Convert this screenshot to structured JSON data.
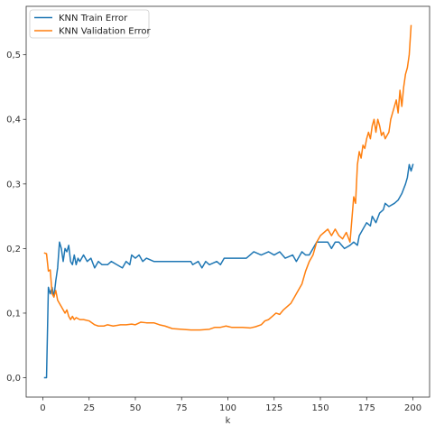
{
  "chart_data": {
    "type": "line",
    "title": "",
    "xlabel": "k",
    "ylabel": "",
    "xlim": [
      -9,
      209
    ],
    "ylim": [
      -0.03,
      0.575
    ],
    "x_ticks": [
      0,
      25,
      50,
      75,
      100,
      125,
      150,
      175,
      200
    ],
    "x_tick_labels": [
      "0",
      "25",
      "50",
      "75",
      "100",
      "125",
      "150",
      "175",
      "200"
    ],
    "y_ticks": [
      0.0,
      0.1,
      0.2,
      0.3,
      0.4,
      0.5
    ],
    "y_tick_labels": [
      "0,0",
      "0,1",
      "0,2",
      "0,3",
      "0,4",
      "0,5"
    ],
    "grid": false,
    "legend_position": "top-left",
    "series": [
      {
        "name": "KNN Train Error",
        "color": "#1f77b4",
        "points": [
          [
            1,
            0.0
          ],
          [
            2,
            0.0
          ],
          [
            3,
            0.14
          ],
          [
            4,
            0.13
          ],
          [
            5,
            0.14
          ],
          [
            6,
            0.125
          ],
          [
            7,
            0.15
          ],
          [
            8,
            0.17
          ],
          [
            9,
            0.21
          ],
          [
            10,
            0.2
          ],
          [
            11,
            0.18
          ],
          [
            12,
            0.2
          ],
          [
            13,
            0.195
          ],
          [
            14,
            0.205
          ],
          [
            15,
            0.18
          ],
          [
            16,
            0.175
          ],
          [
            17,
            0.19
          ],
          [
            18,
            0.175
          ],
          [
            19,
            0.185
          ],
          [
            20,
            0.18
          ],
          [
            22,
            0.19
          ],
          [
            24,
            0.18
          ],
          [
            26,
            0.185
          ],
          [
            28,
            0.17
          ],
          [
            30,
            0.18
          ],
          [
            32,
            0.175
          ],
          [
            35,
            0.175
          ],
          [
            37,
            0.18
          ],
          [
            40,
            0.175
          ],
          [
            43,
            0.17
          ],
          [
            45,
            0.18
          ],
          [
            47,
            0.175
          ],
          [
            48,
            0.19
          ],
          [
            50,
            0.185
          ],
          [
            52,
            0.19
          ],
          [
            54,
            0.18
          ],
          [
            56,
            0.185
          ],
          [
            60,
            0.18
          ],
          [
            70,
            0.18
          ],
          [
            80,
            0.18
          ],
          [
            81,
            0.175
          ],
          [
            84,
            0.18
          ],
          [
            86,
            0.17
          ],
          [
            88,
            0.18
          ],
          [
            90,
            0.175
          ],
          [
            94,
            0.18
          ],
          [
            96,
            0.175
          ],
          [
            98,
            0.185
          ],
          [
            102,
            0.185
          ],
          [
            110,
            0.185
          ],
          [
            112,
            0.19
          ],
          [
            114,
            0.195
          ],
          [
            118,
            0.19
          ],
          [
            122,
            0.195
          ],
          [
            125,
            0.19
          ],
          [
            128,
            0.195
          ],
          [
            131,
            0.185
          ],
          [
            135,
            0.19
          ],
          [
            137,
            0.18
          ],
          [
            140,
            0.195
          ],
          [
            142,
            0.19
          ],
          [
            144,
            0.19
          ],
          [
            146,
            0.2
          ],
          [
            148,
            0.21
          ],
          [
            150,
            0.21
          ],
          [
            154,
            0.21
          ],
          [
            156,
            0.2
          ],
          [
            158,
            0.21
          ],
          [
            160,
            0.21
          ],
          [
            163,
            0.2
          ],
          [
            166,
            0.205
          ],
          [
            168,
            0.21
          ],
          [
            170,
            0.205
          ],
          [
            171,
            0.22
          ],
          [
            173,
            0.23
          ],
          [
            175,
            0.24
          ],
          [
            177,
            0.235
          ],
          [
            178,
            0.25
          ],
          [
            180,
            0.24
          ],
          [
            182,
            0.255
          ],
          [
            184,
            0.26
          ],
          [
            185,
            0.27
          ],
          [
            187,
            0.265
          ],
          [
            190,
            0.27
          ],
          [
            192,
            0.275
          ],
          [
            194,
            0.285
          ],
          [
            196,
            0.3
          ],
          [
            197,
            0.31
          ],
          [
            198,
            0.33
          ],
          [
            199,
            0.32
          ],
          [
            200,
            0.33
          ]
        ]
      },
      {
        "name": "KNN Validation Error",
        "color": "#ff7f0e",
        "points": [
          [
            1,
            0.193
          ],
          [
            2,
            0.192
          ],
          [
            3,
            0.165
          ],
          [
            4,
            0.167
          ],
          [
            5,
            0.13
          ],
          [
            6,
            0.125
          ],
          [
            7,
            0.135
          ],
          [
            8,
            0.12
          ],
          [
            9,
            0.115
          ],
          [
            10,
            0.11
          ],
          [
            11,
            0.105
          ],
          [
            12,
            0.1
          ],
          [
            13,
            0.105
          ],
          [
            14,
            0.095
          ],
          [
            15,
            0.09
          ],
          [
            16,
            0.095
          ],
          [
            17,
            0.09
          ],
          [
            18,
            0.093
          ],
          [
            20,
            0.09
          ],
          [
            22,
            0.09
          ],
          [
            25,
            0.088
          ],
          [
            28,
            0.082
          ],
          [
            30,
            0.08
          ],
          [
            33,
            0.08
          ],
          [
            35,
            0.082
          ],
          [
            38,
            0.08
          ],
          [
            42,
            0.082
          ],
          [
            45,
            0.082
          ],
          [
            48,
            0.083
          ],
          [
            50,
            0.082
          ],
          [
            53,
            0.086
          ],
          [
            56,
            0.085
          ],
          [
            60,
            0.085
          ],
          [
            63,
            0.082
          ],
          [
            66,
            0.08
          ],
          [
            70,
            0.076
          ],
          [
            75,
            0.075
          ],
          [
            80,
            0.074
          ],
          [
            85,
            0.074
          ],
          [
            90,
            0.075
          ],
          [
            93,
            0.078
          ],
          [
            96,
            0.078
          ],
          [
            99,
            0.08
          ],
          [
            102,
            0.078
          ],
          [
            105,
            0.078
          ],
          [
            108,
            0.078
          ],
          [
            112,
            0.077
          ],
          [
            115,
            0.079
          ],
          [
            118,
            0.082
          ],
          [
            120,
            0.088
          ],
          [
            122,
            0.09
          ],
          [
            124,
            0.095
          ],
          [
            126,
            0.1
          ],
          [
            128,
            0.098
          ],
          [
            130,
            0.105
          ],
          [
            132,
            0.11
          ],
          [
            134,
            0.115
          ],
          [
            136,
            0.125
          ],
          [
            138,
            0.135
          ],
          [
            140,
            0.145
          ],
          [
            142,
            0.165
          ],
          [
            144,
            0.18
          ],
          [
            146,
            0.19
          ],
          [
            148,
            0.21
          ],
          [
            150,
            0.22
          ],
          [
            152,
            0.225
          ],
          [
            154,
            0.23
          ],
          [
            156,
            0.22
          ],
          [
            158,
            0.23
          ],
          [
            160,
            0.22
          ],
          [
            162,
            0.215
          ],
          [
            164,
            0.225
          ],
          [
            166,
            0.21
          ],
          [
            168,
            0.28
          ],
          [
            169,
            0.27
          ],
          [
            170,
            0.33
          ],
          [
            171,
            0.35
          ],
          [
            172,
            0.34
          ],
          [
            173,
            0.36
          ],
          [
            174,
            0.355
          ],
          [
            175,
            0.37
          ],
          [
            176,
            0.38
          ],
          [
            177,
            0.37
          ],
          [
            178,
            0.39
          ],
          [
            179,
            0.4
          ],
          [
            180,
            0.38
          ],
          [
            181,
            0.4
          ],
          [
            182,
            0.39
          ],
          [
            183,
            0.375
          ],
          [
            184,
            0.38
          ],
          [
            185,
            0.37
          ],
          [
            186,
            0.375
          ],
          [
            187,
            0.38
          ],
          [
            188,
            0.4
          ],
          [
            189,
            0.41
          ],
          [
            190,
            0.42
          ],
          [
            191,
            0.43
          ],
          [
            192,
            0.41
          ],
          [
            193,
            0.445
          ],
          [
            194,
            0.42
          ],
          [
            195,
            0.45
          ],
          [
            196,
            0.47
          ],
          [
            197,
            0.48
          ],
          [
            198,
            0.5
          ],
          [
            199,
            0.545
          ]
        ]
      }
    ]
  }
}
